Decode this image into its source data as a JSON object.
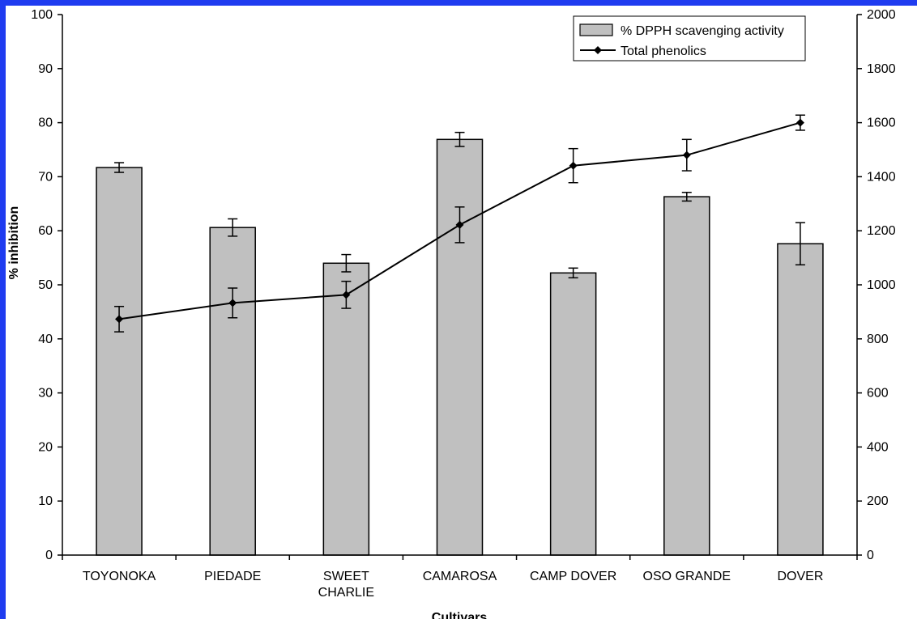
{
  "chart_data": {
    "type": "bar",
    "categories": [
      "TOYONOKA",
      "PIEDADE",
      "SWEET CHARLIE",
      "CAMAROSA",
      "CAMP DOVER",
      "OSO GRANDE",
      "DOVER"
    ],
    "category_lines": [
      [
        "TOYONOKA"
      ],
      [
        "PIEDADE"
      ],
      [
        "SWEET",
        "CHARLIE"
      ],
      [
        "CAMAROSA"
      ],
      [
        "CAMP DOVER"
      ],
      [
        "OSO GRANDE"
      ],
      [
        "DOVER"
      ]
    ],
    "series": [
      {
        "name": "% DPPH scavenging activity",
        "type": "bar",
        "axis": "left",
        "color": "#c0c0c0",
        "values": [
          71.7,
          60.6,
          54.0,
          76.9,
          52.2,
          66.3,
          57.6
        ],
        "errors": [
          0.9,
          1.6,
          1.6,
          1.3,
          0.9,
          0.8,
          3.9
        ]
      },
      {
        "name": "Total phenolics",
        "type": "line",
        "axis": "right",
        "color": "#000000",
        "values": [
          873,
          933,
          963,
          1222,
          1441,
          1480,
          1600
        ],
        "errors": [
          47,
          55,
          50,
          66,
          63,
          58,
          28
        ]
      }
    ],
    "ylabel": "% inhibition",
    "ylabel_right": "",
    "xlabel": "Cultivars",
    "ylim": [
      0,
      100
    ],
    "ylim_right": [
      0,
      2000
    ],
    "yticks": [
      0,
      10,
      20,
      30,
      40,
      50,
      60,
      70,
      80,
      90,
      100
    ],
    "yticks_right": [
      0,
      200,
      400,
      600,
      800,
      1000,
      1200,
      1400,
      1600,
      1800,
      2000
    ],
    "legend_position": "top-right",
    "grid": false
  }
}
